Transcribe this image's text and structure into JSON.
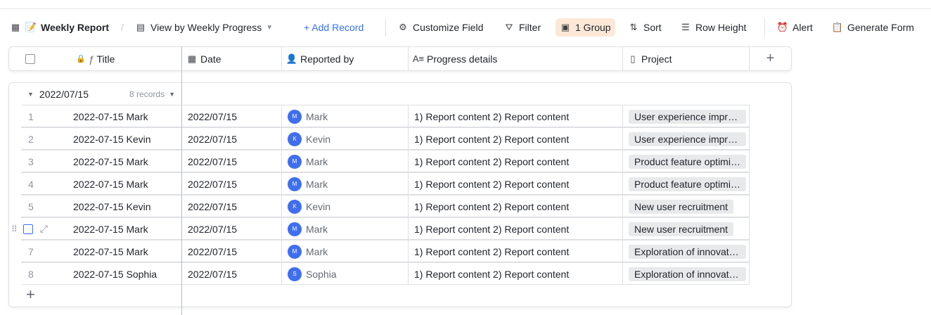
{
  "toolbar": {
    "doc_title": "Weekly Report",
    "view": "View by Weekly Progress",
    "add_record": "+ Add Record",
    "customize_field": "Customize Field",
    "filter": "Filter",
    "group": "1 Group",
    "sort": "Sort",
    "row_height": "Row Height",
    "alert": "Alert",
    "generate_form": "Generate Form"
  },
  "columns": [
    "Title",
    "Date",
    "Reported by",
    "Progress details",
    "Project"
  ],
  "group": {
    "label": "2022/07/15",
    "count": "8 records"
  },
  "rows": [
    {
      "n": "1",
      "title": "2022-07-15 Mark",
      "date": "2022/07/15",
      "initial": "M",
      "person": "Mark",
      "details": "1) Report content 2) Report content",
      "project": "User experience improvement"
    },
    {
      "n": "2",
      "title": "2022-07-15 Kevin",
      "date": "2022/07/15",
      "initial": "K",
      "person": "Kevin",
      "details": "1) Report content 2) Report content",
      "project": "User experience improvement"
    },
    {
      "n": "3",
      "title": "2022-07-15 Mark",
      "date": "2022/07/15",
      "initial": "M",
      "person": "Mark",
      "details": "1) Report content 2) Report content",
      "project": "Product feature optimization"
    },
    {
      "n": "4",
      "title": "2022-07-15 Mark",
      "date": "2022/07/15",
      "initial": "M",
      "person": "Mark",
      "details": "1) Report content 2) Report content",
      "project": "Product feature optimization"
    },
    {
      "n": "5",
      "title": "2022-07-15 Kevin",
      "date": "2022/07/15",
      "initial": "K",
      "person": "Kevin",
      "details": "1) Report content 2) Report content",
      "project": "New user recruitment"
    },
    {
      "n": "",
      "title": "2022-07-15 Mark",
      "date": "2022/07/15",
      "initial": "M",
      "person": "Mark",
      "details": "1) Report content 2) Report content",
      "project": "New user recruitment"
    },
    {
      "n": "7",
      "title": "2022-07-15 Mark",
      "date": "2022/07/15",
      "initial": "M",
      "person": "Mark",
      "details": "1) Report content 2) Report content",
      "project": "Exploration of innovation"
    },
    {
      "n": "8",
      "title": "2022-07-15 Sophia",
      "date": "2022/07/15",
      "initial": "S",
      "person": "Sophia",
      "details": "1) Report content 2) Report content",
      "project": "Exploration of innovation"
    }
  ],
  "colors": {
    "accent": "#3370ff",
    "avatar": "#3f6ff0",
    "group_active": "#fde8d7"
  }
}
